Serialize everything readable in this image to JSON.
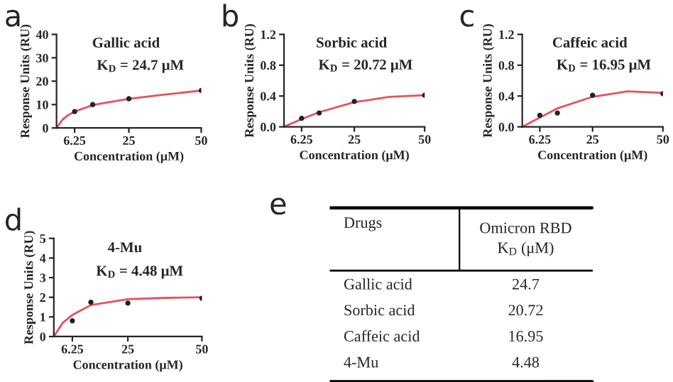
{
  "chart_data": [
    {
      "type": "scatter",
      "annotations": [
        "a",
        "Gallic acid",
        "K$_{D}$ = 24.7 μM"
      ],
      "xlabel": "Concentration (μM)",
      "ylabel": "Response Units (RU)",
      "x": [
        6.25,
        12.5,
        25,
        50
      ],
      "xlim": [
        0,
        50
      ],
      "xticks": [
        6.25,
        25,
        50
      ],
      "ylim": [
        0,
        40
      ],
      "yticks": [
        0,
        10,
        20,
        30,
        40
      ],
      "grid": false,
      "series": [
        {
          "type": "scatter",
          "marker": "circle",
          "color": "#222222",
          "values": [
            7,
            10,
            12.5,
            16
          ]
        },
        {
          "type": "line",
          "color": "#e8505b",
          "x": [
            0,
            2,
            4,
            6.25,
            12.5,
            25,
            37.5,
            50
          ],
          "values": [
            0,
            3.5,
            5.5,
            7,
            9.8,
            12.5,
            14.3,
            16
          ]
        }
      ]
    },
    {
      "type": "scatter",
      "annotations": [
        "b",
        "Sorbic acid",
        "K$_{D}$ = 20.72 μM"
      ],
      "xlabel": "Concentration (μM)",
      "ylabel": "Response Units (RU)",
      "x": [
        6.25,
        12.5,
        25,
        50
      ],
      "xlim": [
        0,
        50
      ],
      "xticks": [
        6.25,
        25,
        50
      ],
      "ylim": [
        0,
        1.2
      ],
      "yticks": [
        {
          "value": 0,
          "label": "0.0"
        },
        0.4,
        0.8,
        1.2
      ],
      "grid": false,
      "series": [
        {
          "type": "scatter",
          "marker": "circle",
          "color": "#222222",
          "values": [
            0.11,
            0.18,
            0.33,
            0.41
          ]
        },
        {
          "type": "line",
          "color": "#e8505b",
          "x": [
            0,
            6.25,
            12.5,
            25,
            37.5,
            50
          ],
          "values": [
            0,
            0.1,
            0.19,
            0.32,
            0.39,
            0.41
          ]
        }
      ]
    },
    {
      "type": "scatter",
      "annotations": [
        "c",
        "Caffeic acid",
        "K$_{D}$ = 16.95 μM"
      ],
      "xlabel": "Concentration (μM)",
      "ylabel": "Response Units (RU)",
      "x": [
        6.25,
        12.5,
        25,
        50
      ],
      "xlim": [
        0,
        50
      ],
      "xticks": [
        6.25,
        25,
        50
      ],
      "ylim": [
        0,
        1.2
      ],
      "yticks": [
        {
          "value": 0,
          "label": "0.0"
        },
        0.4,
        0.8,
        1.2
      ],
      "grid": false,
      "series": [
        {
          "type": "scatter",
          "marker": "circle",
          "color": "#222222",
          "values": [
            0.15,
            0.18,
            0.41,
            0.43
          ]
        },
        {
          "type": "line",
          "color": "#e8505b",
          "x": [
            0,
            6.25,
            12.5,
            25,
            37.5,
            50
          ],
          "values": [
            0,
            0.12,
            0.24,
            0.39,
            0.46,
            0.44
          ]
        }
      ]
    },
    {
      "type": "scatter",
      "annotations": [
        "d",
        "4-Mu",
        "K$_{D}$ = 4.48 μM"
      ],
      "xlabel": "Concentration (μM)",
      "ylabel": "Response Units (RU)",
      "x": [
        6.25,
        12.5,
        25,
        50
      ],
      "xlim": [
        0,
        50
      ],
      "xticks": [
        6.25,
        25,
        50
      ],
      "ylim": [
        0,
        5
      ],
      "yticks": [
        0,
        1,
        2,
        3,
        4,
        5
      ],
      "grid": false,
      "series": [
        {
          "type": "scatter",
          "marker": "circle",
          "color": "#222222",
          "values": [
            0.8,
            1.75,
            1.7,
            1.95
          ]
        },
        {
          "type": "line",
          "color": "#e8505b",
          "x": [
            0,
            3,
            6.25,
            12.5,
            25,
            37.5,
            50
          ],
          "values": [
            0,
            0.7,
            1.1,
            1.6,
            1.9,
            1.97,
            2.0
          ]
        }
      ]
    },
    {
      "type": "other",
      "annotations": [
        "e",
        "Drugs",
        "Omicron RBD\nK$_{D}$ (μM)"
      ],
      "categories": [
        "Gallic acid",
        "Sorbic acid",
        "Caffeic acid",
        "4-Mu"
      ],
      "values": [
        24.7,
        20.72,
        16.95,
        4.48
      ],
      "data_labels": true
    }
  ]
}
